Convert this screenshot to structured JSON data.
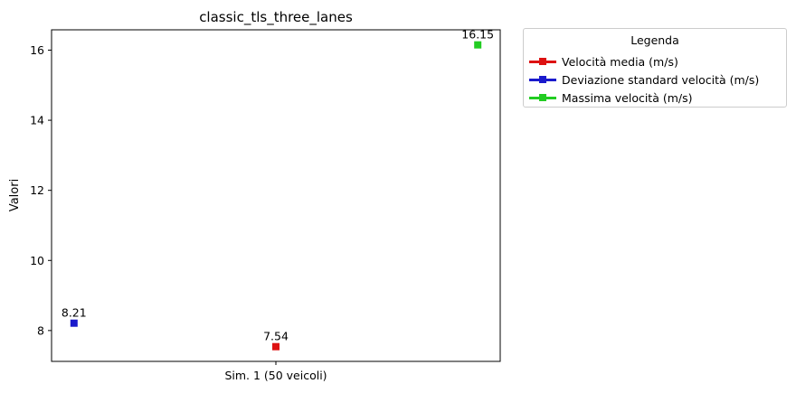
{
  "chart_data": {
    "type": "scatter",
    "title": "classic_tls_three_lanes",
    "xlabel": "",
    "ylabel": "Valori",
    "categories": [
      "Sim. 1 (50 veicoli)"
    ],
    "ylim": [
      7.12,
      16.58
    ],
    "yticks": [
      8,
      10,
      12,
      14,
      16
    ],
    "grid": false,
    "legend_title": "Legenda",
    "legend_position": "outside-top-right",
    "series": [
      {
        "name": "Velocità media (m/s)",
        "color": "#dd1111",
        "values": [
          7.54
        ],
        "label": "7.54",
        "offset": 0
      },
      {
        "name": "Deviazione standard velocità (m/s)",
        "color": "#1a1acc",
        "values": [
          8.21
        ],
        "label": "8.21",
        "offset": -0.45
      },
      {
        "name": "Massima velocità (m/s)",
        "color": "#22cc22",
        "values": [
          16.15
        ],
        "label": "16.15",
        "offset": 0.45
      }
    ]
  }
}
